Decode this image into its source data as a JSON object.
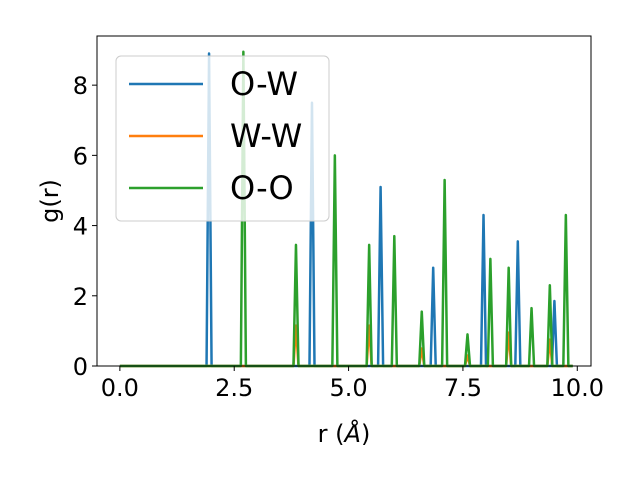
{
  "chart_data": {
    "type": "line",
    "xlabel": "r (",
    "xlabel_unit": "Å",
    "xlabel_close": ")",
    "ylabel": "g(r)",
    "xlim": [
      -0.5,
      10.3
    ],
    "ylim": [
      0,
      9.4
    ],
    "x_ticks": [
      0.0,
      2.5,
      5.0,
      7.5,
      10.0
    ],
    "x_tick_labels": [
      "0.0",
      "2.5",
      "5.0",
      "7.5",
      "10.0"
    ],
    "y_ticks": [
      0,
      2,
      4,
      6,
      8
    ],
    "y_tick_labels": [
      "0",
      "2",
      "4",
      "6",
      "8"
    ],
    "grid": false,
    "legend_position": "upper-left",
    "x_start": 0.0,
    "x_end": 9.9,
    "series": [
      {
        "name": "O-W",
        "color": "#1f77b4",
        "peaks": [
          [
            1.95,
            8.9
          ],
          [
            4.2,
            7.5
          ],
          [
            5.7,
            5.1
          ],
          [
            6.85,
            2.8
          ],
          [
            7.95,
            4.3
          ],
          [
            8.7,
            3.55
          ],
          [
            9.5,
            1.85
          ]
        ]
      },
      {
        "name": "W-W",
        "color": "#ff7f0e",
        "peaks": [
          [
            3.85,
            1.15
          ],
          [
            5.45,
            1.15
          ],
          [
            6.6,
            0.5
          ],
          [
            7.6,
            0.3
          ],
          [
            8.5,
            0.95
          ],
          [
            9.4,
            0.75
          ]
        ]
      },
      {
        "name": "O-O",
        "color": "#2ca02c",
        "peaks": [
          [
            2.7,
            8.95
          ],
          [
            3.85,
            3.45
          ],
          [
            4.7,
            6.0
          ],
          [
            5.45,
            3.45
          ],
          [
            6.0,
            3.7
          ],
          [
            6.6,
            1.55
          ],
          [
            7.1,
            5.3
          ],
          [
            7.6,
            0.9
          ],
          [
            8.1,
            3.05
          ],
          [
            8.5,
            2.8
          ],
          [
            9.0,
            1.65
          ],
          [
            9.4,
            2.3
          ],
          [
            9.75,
            4.3
          ]
        ]
      }
    ]
  }
}
